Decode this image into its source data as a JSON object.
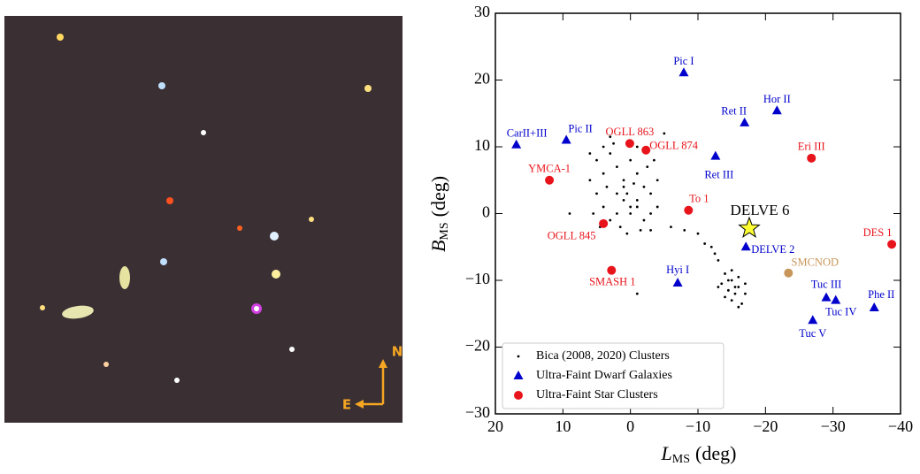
{
  "image": {
    "compass_n": "N",
    "compass_e": "E"
  },
  "chart_data": {
    "type": "scatter",
    "xlabel": {
      "symbol": "L",
      "subscript": "MS",
      "unit": "(deg)"
    },
    "ylabel": {
      "symbol": "B",
      "subscript": "MS",
      "unit": "(deg)"
    },
    "xlim": [
      20,
      -40
    ],
    "ylim": [
      -30,
      30
    ],
    "xticks": [
      20,
      10,
      0,
      -10,
      -20,
      -30,
      -40
    ],
    "yticks": [
      -30,
      -20,
      -10,
      0,
      10,
      20,
      30
    ],
    "legend": "lower left",
    "series": [
      {
        "name": "Bica (2008, 2020) Clusters",
        "color": "#000000",
        "marker": "dot",
        "x": [
          5,
          4,
          3,
          2,
          1,
          0,
          -1,
          -2,
          -3,
          -4,
          5,
          4,
          3,
          2,
          1,
          0,
          -1,
          -2,
          -3,
          -2.5,
          3.5,
          0.5,
          -0.5,
          1.5,
          -1.5,
          4.5,
          6,
          5.5,
          -3.5,
          2.5,
          -1,
          0,
          1,
          2,
          -1,
          6,
          4,
          -4,
          -3,
          0.5,
          3,
          -5,
          9,
          -1,
          -6,
          -8,
          -10,
          -11,
          -12,
          -12.5,
          -13,
          -14,
          -15,
          -16,
          -15.5,
          -14.5,
          -16,
          -13.5,
          -17,
          -15,
          -16.5,
          -14,
          -15,
          -17,
          -13,
          -16,
          -15.5,
          -14.5
        ],
        "values": [
          8,
          6,
          9,
          7,
          5,
          8,
          6,
          4,
          3,
          5,
          3,
          1,
          -1,
          0,
          2,
          0,
          2,
          -1,
          0,
          7,
          4,
          3,
          4.5,
          -2,
          -2.5,
          -2,
          5,
          0,
          8,
          10.5,
          10,
          1,
          4,
          3,
          1,
          9,
          10,
          1,
          -2.5,
          -3,
          11.5,
          12,
          0,
          -12,
          -2,
          -2.5,
          -3,
          -4.5,
          -5,
          -6,
          -7,
          -9,
          -10,
          -11,
          -12,
          -11.5,
          -9.5,
          -10.5,
          -12,
          -13,
          -13.5,
          -12.5,
          -8.5,
          -10.5,
          -11,
          -14,
          -11,
          -10
        ]
      },
      {
        "name": "Ultra-Faint Dwarf Galaxies",
        "color": "#0000cc",
        "marker": "triangle",
        "x": [
          -7.9,
          -21.7,
          -16.9,
          9.5,
          16.9,
          -12.6,
          -17.1,
          -7.0,
          -29.0,
          -30.4,
          -36.1,
          -27.0
        ],
        "values": [
          21.1,
          15.4,
          13.6,
          11.0,
          10.3,
          8.6,
          -5.0,
          -10.4,
          -12.6,
          -13.0,
          -14.1,
          -16.0
        ],
        "labels": [
          "Pic I",
          "Hor II",
          "Ret II",
          "Pic II",
          "CarII+III",
          "Ret III",
          "DELVE 2",
          "Hyi I",
          "Tuc III",
          "Tuc IV",
          "Phe II",
          "Tuc V"
        ]
      },
      {
        "name": "Ultra-Faint Star Clusters",
        "color": "#e8141c",
        "marker": "circle",
        "x": [
          0.1,
          -2.3,
          -26.8,
          12.0,
          -8.6,
          4.0,
          -38.7,
          2.8
        ],
        "values": [
          10.5,
          9.5,
          8.3,
          5.0,
          0.5,
          -1.5,
          -4.6,
          -8.5
        ],
        "labels": [
          "OGLL 863",
          "OGLL 874",
          "Eri III",
          "YMCA-1",
          "To 1",
          "OGLL 845",
          "DES 1",
          "SMASH 1"
        ]
      },
      {
        "color": "#c8965a",
        "marker": "circle",
        "x": [
          -23.4
        ],
        "values": [
          -8.9
        ],
        "labels": [
          "SMCNOD"
        ]
      },
      {
        "color": "#ffff33",
        "label_color": "#000000",
        "marker": "star",
        "x": [
          -17.6
        ],
        "values": [
          -2.2
        ],
        "labels": [
          "DELVE 6"
        ]
      }
    ]
  }
}
